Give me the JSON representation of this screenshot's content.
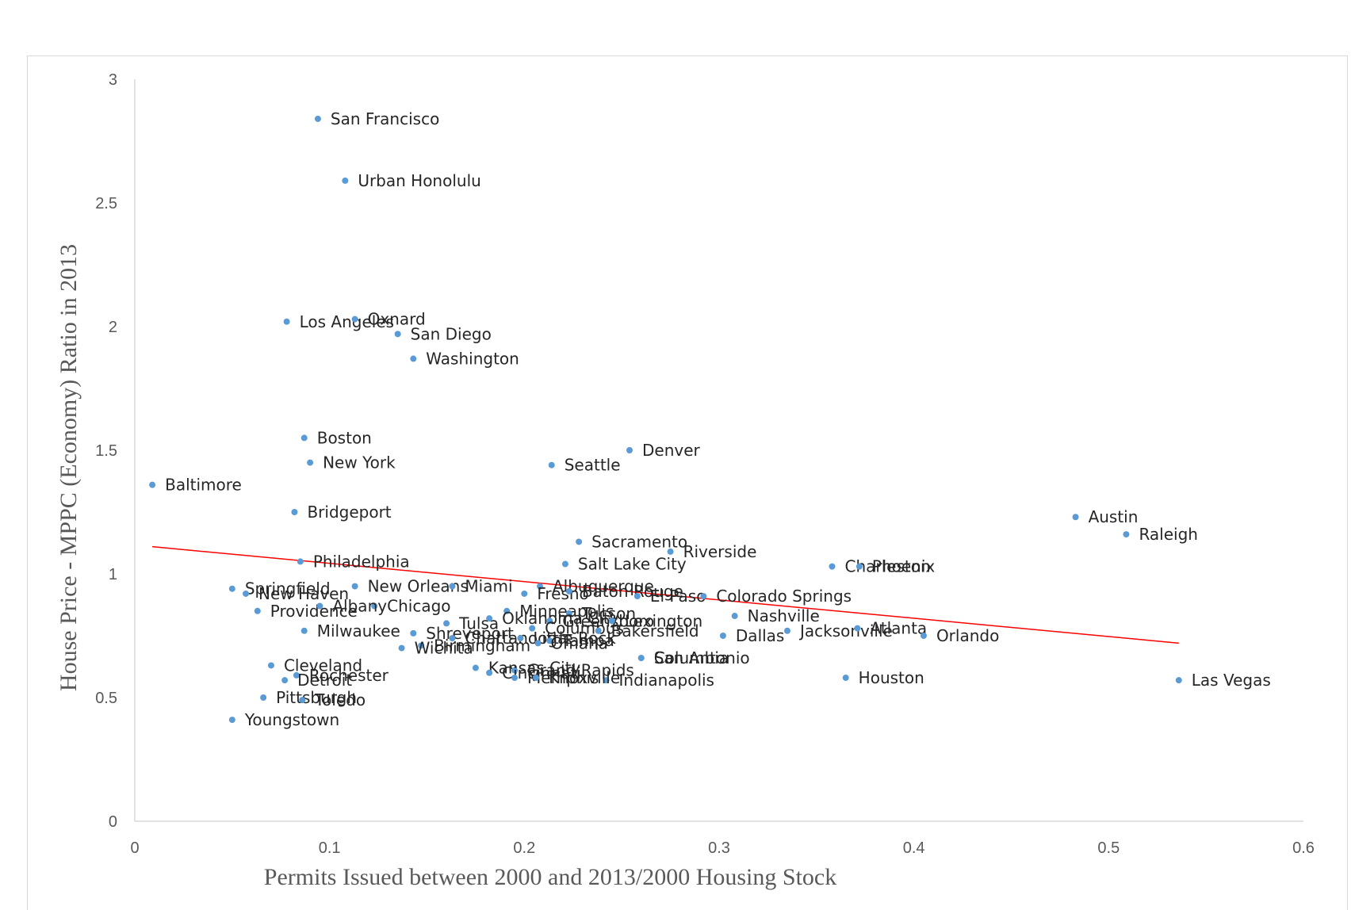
{
  "chart_data": {
    "type": "scatter",
    "xlabel": "Permits Issued between 2000 and 2013/2000 Housing Stock",
    "ylabel": "House Price - MPPC (Economy) Ratio in 2013",
    "xlim": [
      0,
      0.6
    ],
    "ylim": [
      0,
      3
    ],
    "xticks": [
      "0",
      "0.1",
      "0.2",
      "0.3",
      "0.4",
      "0.5",
      "0.6"
    ],
    "yticks": [
      "0",
      "0.5",
      "1",
      "1.5",
      "2",
      "2.5",
      "3"
    ],
    "grid": false,
    "legend": "none",
    "point_color": "#5b9bd5",
    "trendline_color": "#ff0000",
    "trendline": {
      "x": [
        0.009,
        0.536
      ],
      "y": [
        1.11,
        0.72
      ]
    },
    "points": [
      {
        "label": "San Francisco",
        "x": 0.094,
        "y": 2.84
      },
      {
        "label": "Urban Honolulu",
        "x": 0.108,
        "y": 2.59
      },
      {
        "label": "Los Angeles",
        "x": 0.078,
        "y": 2.02
      },
      {
        "label": "Oxnard",
        "x": 0.113,
        "y": 2.03
      },
      {
        "label": "San Diego",
        "x": 0.135,
        "y": 1.97
      },
      {
        "label": "Washington",
        "x": 0.143,
        "y": 1.87
      },
      {
        "label": "Boston",
        "x": 0.087,
        "y": 1.55
      },
      {
        "label": "New York",
        "x": 0.09,
        "y": 1.45
      },
      {
        "label": "Baltimore",
        "x": 0.009,
        "y": 1.36
      },
      {
        "label": "Bridgeport",
        "x": 0.082,
        "y": 1.25
      },
      {
        "label": "Denver",
        "x": 0.254,
        "y": 1.5
      },
      {
        "label": "Seattle",
        "x": 0.214,
        "y": 1.44
      },
      {
        "label": "Austin",
        "x": 0.483,
        "y": 1.23
      },
      {
        "label": "Raleigh",
        "x": 0.509,
        "y": 1.16
      },
      {
        "label": "Sacramento",
        "x": 0.228,
        "y": 1.13
      },
      {
        "label": "Riverside",
        "x": 0.275,
        "y": 1.09
      },
      {
        "label": "Salt Lake City",
        "x": 0.221,
        "y": 1.04
      },
      {
        "label": "Charleston",
        "x": 0.358,
        "y": 1.03
      },
      {
        "label": "Phoenix",
        "x": 0.372,
        "y": 1.03
      },
      {
        "label": "Philadelphia",
        "x": 0.085,
        "y": 1.05
      },
      {
        "label": "Springfield",
        "x": 0.05,
        "y": 0.94
      },
      {
        "label": "New Haven",
        "x": 0.057,
        "y": 0.92
      },
      {
        "label": "New Orleans",
        "x": 0.113,
        "y": 0.95
      },
      {
        "label": "Miami",
        "x": 0.163,
        "y": 0.95
      },
      {
        "label": "Albuquerque",
        "x": 0.208,
        "y": 0.95
      },
      {
        "label": "Fresno",
        "x": 0.2,
        "y": 0.92
      },
      {
        "label": "Baton Rouge",
        "x": 0.223,
        "y": 0.93
      },
      {
        "label": "El Paso",
        "x": 0.258,
        "y": 0.91
      },
      {
        "label": "Colorado Springs",
        "x": 0.292,
        "y": 0.91
      },
      {
        "label": "Chicago",
        "x": 0.123,
        "y": 0.87
      },
      {
        "label": "Providence",
        "x": 0.063,
        "y": 0.85
      },
      {
        "label": "Albany",
        "x": 0.095,
        "y": 0.87
      },
      {
        "label": "Minneapolis",
        "x": 0.191,
        "y": 0.85
      },
      {
        "label": "Tucson",
        "x": 0.223,
        "y": 0.84
      },
      {
        "label": "Tulsa",
        "x": 0.16,
        "y": 0.8
      },
      {
        "label": "Oklahoma City",
        "x": 0.182,
        "y": 0.82
      },
      {
        "label": "Greensboro",
        "x": 0.213,
        "y": 0.81
      },
      {
        "label": "Lexington",
        "x": 0.245,
        "y": 0.81
      },
      {
        "label": "Nashville",
        "x": 0.308,
        "y": 0.83
      },
      {
        "label": "Milwaukee",
        "x": 0.087,
        "y": 0.77
      },
      {
        "label": "Shreveport",
        "x": 0.143,
        "y": 0.76
      },
      {
        "label": "Chattanooga",
        "x": 0.163,
        "y": 0.74
      },
      {
        "label": "Little Rock",
        "x": 0.198,
        "y": 0.74
      },
      {
        "label": "Columbus",
        "x": 0.204,
        "y": 0.78
      },
      {
        "label": "Tampa",
        "x": 0.213,
        "y": 0.73
      },
      {
        "label": "Bakersfield",
        "x": 0.238,
        "y": 0.77
      },
      {
        "label": "Dallas",
        "x": 0.302,
        "y": 0.75
      },
      {
        "label": "Jacksonville",
        "x": 0.335,
        "y": 0.77
      },
      {
        "label": "Atlanta",
        "x": 0.371,
        "y": 0.78
      },
      {
        "label": "Orlando",
        "x": 0.405,
        "y": 0.75
      },
      {
        "label": "Birmingham",
        "x": 0.147,
        "y": 0.71
      },
      {
        "label": "Columbia",
        "x": 0.26,
        "y": 0.66
      },
      {
        "label": "Wichita",
        "x": 0.137,
        "y": 0.7
      },
      {
        "label": "Omaha",
        "x": 0.207,
        "y": 0.72
      },
      {
        "label": "San Antonio",
        "x": 0.26,
        "y": 0.66
      },
      {
        "label": "Kansas City",
        "x": 0.175,
        "y": 0.62
      },
      {
        "label": "Grand Rapids",
        "x": 0.195,
        "y": 0.61
      },
      {
        "label": "Cincinnati",
        "x": 0.182,
        "y": 0.6
      },
      {
        "label": "Indianapolis",
        "x": 0.242,
        "y": 0.57
      },
      {
        "label": "Memphis",
        "x": 0.195,
        "y": 0.58
      },
      {
        "label": "Knoxville",
        "x": 0.206,
        "y": 0.58
      },
      {
        "label": "Houston",
        "x": 0.365,
        "y": 0.58
      },
      {
        "label": "Las Vegas",
        "x": 0.536,
        "y": 0.57
      },
      {
        "label": "Cleveland",
        "x": 0.07,
        "y": 0.63
      },
      {
        "label": "Rochester",
        "x": 0.083,
        "y": 0.59
      },
      {
        "label": "Detroit",
        "x": 0.077,
        "y": 0.57
      },
      {
        "label": "Pittsburgh",
        "x": 0.066,
        "y": 0.5
      },
      {
        "label": "Toledo",
        "x": 0.086,
        "y": 0.49
      },
      {
        "label": "Youngstown",
        "x": 0.05,
        "y": 0.41
      }
    ]
  }
}
